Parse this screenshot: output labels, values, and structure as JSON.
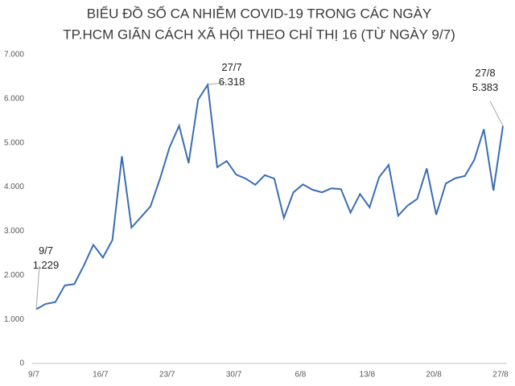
{
  "chart_data": {
    "type": "line",
    "title": [
      "BIỂU ĐỒ SỐ CA NHIỄM COVID-19 TRONG CÁC NGÀY",
      "TP.HCM GIÃN CÁCH XÃ HỘI THEO CHỈ THỊ 16 (TỪ NGÀY 9/7)"
    ],
    "categories": [
      "9/7",
      null,
      null,
      null,
      null,
      null,
      null,
      "16/7",
      null,
      null,
      null,
      null,
      null,
      null,
      "23/7",
      null,
      null,
      null,
      null,
      null,
      null,
      "30/7",
      null,
      null,
      null,
      null,
      null,
      null,
      "6/8",
      null,
      null,
      null,
      null,
      null,
      null,
      "13/8",
      null,
      null,
      null,
      null,
      null,
      null,
      "20/8",
      null,
      null,
      null,
      null,
      null,
      null,
      "27/8"
    ],
    "values": [
      1229,
      1350,
      1390,
      1770,
      1800,
      2220,
      2690,
      2400,
      2800,
      4700,
      3080,
      3320,
      3560,
      4190,
      4900,
      5390,
      4540,
      5980,
      6318,
      4450,
      4590,
      4280,
      4190,
      4050,
      4270,
      4190,
      3300,
      3880,
      4060,
      3940,
      3880,
      3970,
      3950,
      3420,
      3840,
      3540,
      4220,
      4500,
      3350,
      3580,
      3730,
      4420,
      3370,
      4080,
      4200,
      4250,
      4620,
      5310,
      3920,
      5383
    ],
    "point_labels": [
      "9/7",
      null,
      null,
      null,
      null,
      null,
      null,
      null,
      null,
      null,
      null,
      null,
      null,
      null,
      null,
      null,
      null,
      null,
      "27/7",
      null,
      null,
      null,
      null,
      null,
      null,
      null,
      null,
      null,
      null,
      null,
      null,
      null,
      null,
      null,
      null,
      null,
      null,
      null,
      null,
      null,
      null,
      null,
      null,
      null,
      null,
      null,
      null,
      null,
      null,
      "27/8"
    ],
    "value_labels": [
      "1.229",
      null,
      null,
      null,
      null,
      null,
      null,
      null,
      null,
      null,
      null,
      null,
      null,
      null,
      null,
      null,
      null,
      null,
      "6.318",
      null,
      null,
      null,
      null,
      null,
      null,
      null,
      null,
      null,
      null,
      null,
      null,
      null,
      null,
      null,
      null,
      null,
      null,
      null,
      null,
      null,
      null,
      null,
      null,
      null,
      null,
      null,
      null,
      null,
      null,
      "5.383"
    ],
    "color": "#3a6db5",
    "ylim": [
      0,
      7000
    ],
    "yticks": [
      0,
      {
        "value": 1000,
        "label": "1.000"
      },
      {
        "value": 2000,
        "label": "2.000"
      },
      {
        "value": 3000,
        "label": "3.000"
      },
      {
        "value": 4000,
        "label": "4.000"
      },
      {
        "value": 5000,
        "label": "5.000"
      },
      {
        "value": 6000,
        "label": "6.000"
      },
      {
        "value": 7000,
        "label": "7.000"
      }
    ],
    "grid": false
  }
}
